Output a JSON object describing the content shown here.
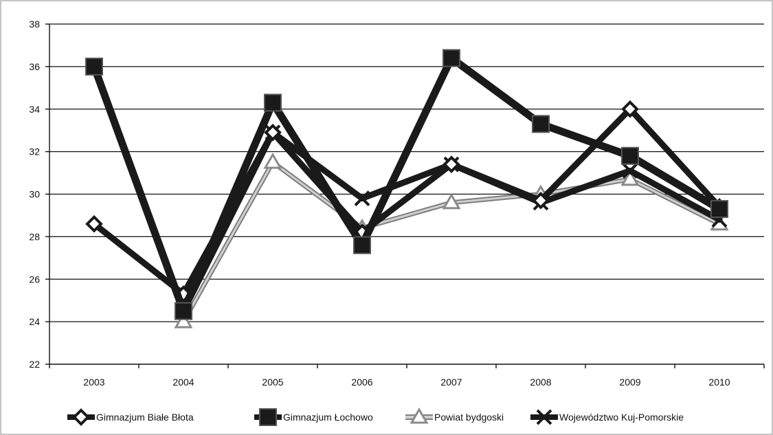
{
  "chart_data": {
    "type": "line",
    "title": "",
    "xlabel": "",
    "ylabel": "",
    "categories": [
      "2003",
      "2004",
      "2005",
      "2006",
      "2007",
      "2008",
      "2009",
      "2010"
    ],
    "ylim": [
      22,
      38
    ],
    "yticks": [
      22,
      24,
      26,
      28,
      30,
      32,
      34,
      36,
      38
    ],
    "grid": true,
    "legend_position": "bottom",
    "series": [
      {
        "name": "Gimnazjum Białe Błota",
        "values": [
          28.6,
          25.3,
          32.9,
          28.2,
          31.4,
          29.7,
          34.0,
          29.4
        ],
        "color": "#1a1a1a",
        "marker": "diamond"
      },
      {
        "name": "Gimnazjum Łochowo",
        "values": [
          36.0,
          24.5,
          34.3,
          27.6,
          36.4,
          33.3,
          31.8,
          29.3
        ],
        "color": "#1a1a1a",
        "marker": "square"
      },
      {
        "name": "Powiat bydgoski",
        "values": [
          null,
          24.0,
          31.5,
          28.4,
          29.6,
          30.0,
          30.7,
          28.6
        ],
        "color": "#9a9a9a",
        "marker": "triangle"
      },
      {
        "name": "Województwo Kuj-Pomorskie",
        "values": [
          null,
          24.5,
          32.9,
          29.8,
          31.4,
          29.6,
          31.1,
          28.8
        ],
        "color": "#1a1a1a",
        "marker": "x"
      }
    ]
  }
}
